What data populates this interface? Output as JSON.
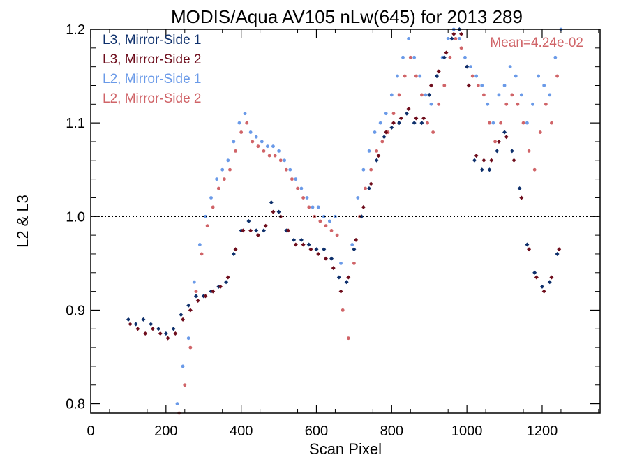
{
  "chart_data": {
    "type": "scatter",
    "title": "MODIS/Aqua AV105 nLw(645) for 2013 289",
    "xlabel": "Scan Pixel",
    "ylabel": "L2 & L3",
    "xlim": [
      0,
      1354
    ],
    "ylim": [
      0.79,
      1.2
    ],
    "xticks": [
      0,
      200,
      400,
      600,
      800,
      1000,
      1200
    ],
    "yticks": [
      0.8,
      0.9,
      1.0,
      1.1,
      1.2
    ],
    "xtick_labels": [
      "0",
      "200",
      "400",
      "600",
      "800",
      "1000",
      "1200"
    ],
    "ytick_labels": [
      "0.8",
      "0.9",
      "1.0",
      "1.1",
      "1.2"
    ],
    "reference_line": {
      "y": 1.0,
      "style": "dotted"
    },
    "annotation": "Mean=4.24e-02",
    "legend_position": "top-left",
    "grid": false,
    "series": [
      {
        "name": "L3, Mirror-Side 1",
        "color": "#0d2f6b",
        "marker": "diamond",
        "x": [
          100,
          120,
          140,
          160,
          180,
          200,
          220,
          240,
          260,
          280,
          300,
          320,
          340,
          360,
          380,
          400,
          420,
          440,
          460,
          480,
          500,
          520,
          540,
          560,
          580,
          600,
          620,
          640,
          660,
          680,
          700,
          720,
          740,
          760,
          780,
          800,
          820,
          840,
          860,
          880,
          900,
          920,
          940,
          960,
          980,
          1000,
          1020,
          1040,
          1060,
          1080,
          1100,
          1120,
          1140,
          1160,
          1180,
          1200,
          1220,
          1240
        ],
        "y": [
          0.89,
          0.885,
          0.89,
          0.885,
          0.88,
          0.875,
          0.88,
          0.895,
          0.905,
          0.915,
          0.915,
          0.92,
          0.925,
          0.93,
          0.96,
          0.985,
          0.995,
          0.985,
          0.985,
          1.015,
          1.005,
          0.985,
          0.975,
          0.975,
          0.97,
          0.965,
          0.965,
          0.955,
          0.935,
          0.93,
          0.965,
          1.0,
          1.03,
          1.06,
          1.085,
          1.095,
          1.1,
          1.11,
          1.1,
          1.1,
          1.13,
          1.15,
          1.17,
          1.19,
          1.2,
          1.16,
          1.06,
          1.05,
          1.05,
          1.07,
          1.09,
          1.07,
          1.03,
          0.97,
          0.94,
          0.925,
          0.93,
          0.96
        ]
      },
      {
        "name": "L3, Mirror-Side 2",
        "color": "#6e0d1c",
        "marker": "diamond",
        "x": [
          105,
          125,
          145,
          165,
          185,
          205,
          225,
          245,
          265,
          285,
          305,
          325,
          345,
          365,
          385,
          405,
          425,
          445,
          465,
          485,
          505,
          525,
          545,
          565,
          585,
          605,
          625,
          645,
          665,
          685,
          705,
          725,
          745,
          765,
          785,
          805,
          825,
          845,
          865,
          885,
          905,
          925,
          945,
          965,
          985,
          1005,
          1025,
          1045,
          1065,
          1085,
          1105,
          1125,
          1145,
          1165,
          1185,
          1205,
          1225,
          1245
        ],
        "y": [
          0.885,
          0.88,
          0.875,
          0.88,
          0.875,
          0.87,
          0.875,
          0.89,
          0.9,
          0.91,
          0.915,
          0.92,
          0.925,
          0.935,
          0.965,
          0.985,
          0.985,
          0.98,
          0.99,
          1.005,
          1.0,
          0.985,
          0.97,
          0.97,
          0.965,
          0.96,
          0.955,
          0.945,
          0.92,
          0.935,
          0.975,
          1.01,
          1.035,
          1.065,
          1.09,
          1.1,
          1.105,
          1.115,
          1.105,
          1.105,
          1.14,
          1.155,
          1.175,
          1.195,
          1.195,
          1.14,
          1.065,
          1.06,
          1.06,
          1.08,
          1.085,
          1.06,
          1.02,
          0.965,
          0.935,
          0.92,
          0.935,
          0.965
        ]
      },
      {
        "name": "L2, Mirror-Side 1",
        "color": "#6a9ae8",
        "marker": "circle",
        "x": [
          230,
          245,
          260,
          275,
          290,
          305,
          320,
          335,
          350,
          365,
          380,
          395,
          410,
          425,
          440,
          455,
          470,
          485,
          500,
          515,
          530,
          545,
          560,
          575,
          590,
          605,
          620,
          635,
          650,
          665,
          680,
          695,
          710,
          725,
          740,
          755,
          770,
          785,
          800,
          815,
          830,
          845,
          860,
          875,
          890,
          905,
          920,
          935,
          950,
          965,
          980,
          995,
          1010,
          1025,
          1040,
          1055,
          1070,
          1085,
          1100,
          1115,
          1130,
          1145,
          1160,
          1175,
          1190,
          1205,
          1220,
          1235,
          1250
        ],
        "y": [
          0.8,
          0.84,
          0.87,
          0.93,
          0.97,
          1.0,
          1.02,
          1.04,
          1.05,
          1.06,
          1.08,
          1.1,
          1.11,
          1.09,
          1.085,
          1.08,
          1.075,
          1.075,
          1.07,
          1.06,
          1.05,
          1.04,
          1.03,
          1.02,
          1.01,
          1.01,
          1.0,
          0.995,
          1.0,
          0.95,
          0.93,
          0.97,
          1.02,
          1.05,
          1.07,
          1.09,
          1.1,
          1.11,
          1.13,
          1.15,
          1.17,
          1.19,
          1.17,
          1.15,
          1.13,
          1.12,
          1.15,
          1.17,
          1.19,
          1.2,
          1.19,
          1.17,
          1.16,
          1.15,
          1.14,
          1.12,
          1.1,
          1.13,
          1.14,
          1.16,
          1.15,
          1.13,
          1.1,
          1.12,
          1.15,
          1.14,
          1.13,
          1.17,
          1.2
        ]
      },
      {
        "name": "L2, Mirror-Side 2",
        "color": "#d06468",
        "marker": "circle",
        "x": [
          235,
          250,
          265,
          280,
          295,
          310,
          325,
          340,
          355,
          370,
          385,
          400,
          415,
          430,
          445,
          460,
          475,
          490,
          505,
          520,
          535,
          550,
          565,
          580,
          595,
          610,
          625,
          640,
          655,
          670,
          685,
          700,
          715,
          730,
          745,
          760,
          775,
          790,
          805,
          820,
          835,
          850,
          865,
          880,
          895,
          910,
          925,
          940,
          955,
          970,
          985,
          1000,
          1015,
          1030,
          1045,
          1060,
          1075,
          1090,
          1105,
          1120,
          1135,
          1150,
          1165,
          1180,
          1195,
          1210,
          1225,
          1240
        ],
        "y": [
          0.79,
          0.82,
          0.86,
          0.92,
          0.96,
          0.99,
          1.01,
          1.03,
          1.04,
          1.05,
          1.07,
          1.09,
          1.1,
          1.08,
          1.075,
          1.07,
          1.065,
          1.065,
          1.06,
          1.05,
          1.04,
          1.03,
          1.02,
          1.01,
          1.0,
          0.995,
          0.99,
          0.985,
          0.98,
          0.9,
          0.87,
          0.95,
          1.0,
          1.03,
          1.05,
          1.07,
          1.08,
          1.09,
          1.11,
          1.13,
          1.15,
          1.17,
          1.15,
          1.13,
          1.1,
          1.09,
          1.12,
          1.14,
          1.17,
          1.19,
          1.18,
          1.16,
          1.15,
          1.14,
          1.13,
          1.1,
          1.08,
          1.1,
          1.12,
          1.13,
          1.12,
          1.1,
          1.07,
          1.05,
          1.09,
          1.12,
          1.1,
          1.15
        ]
      }
    ]
  }
}
